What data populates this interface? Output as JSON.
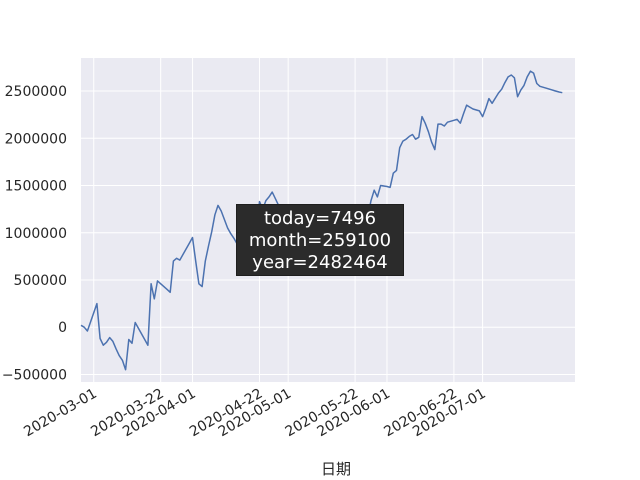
{
  "chart_data": {
    "type": "line",
    "title": "",
    "xlabel": "日期",
    "ylabel": "",
    "style": "seaborn-darkgrid",
    "background_color": "#eaeaf2",
    "line_color": "#4c72b0",
    "grid": true,
    "ylim": [
      -580000,
      2850000
    ],
    "xlim": [
      "2020-02-26",
      "2020-07-30"
    ],
    "x_ticks": [
      "2020-03-01",
      "2020-03-22",
      "2020-04-01",
      "2020-04-22",
      "2020-05-01",
      "2020-05-22",
      "2020-06-01",
      "2020-06-22",
      "2020-07-01"
    ],
    "y_ticks": [
      -500000,
      0,
      500000,
      1000000,
      1500000,
      2000000,
      2500000
    ],
    "y_tick_labels": [
      "−500000",
      "0",
      "500000",
      "1000000",
      "1500000",
      "2000000",
      "2500000"
    ],
    "series": [
      {
        "points": [
          [
            "2020-02-26",
            20000
          ],
          [
            "2020-02-27",
            0
          ],
          [
            "2020-02-28",
            -40000
          ],
          [
            "2020-03-02",
            250000
          ],
          [
            "2020-03-03",
            -120000
          ],
          [
            "2020-03-04",
            -190000
          ],
          [
            "2020-03-05",
            -160000
          ],
          [
            "2020-03-06",
            -110000
          ],
          [
            "2020-03-07",
            -150000
          ],
          [
            "2020-03-08",
            -230000
          ],
          [
            "2020-03-09",
            -300000
          ],
          [
            "2020-03-10",
            -350000
          ],
          [
            "2020-03-11",
            -450000
          ],
          [
            "2020-03-12",
            -130000
          ],
          [
            "2020-03-13",
            -170000
          ],
          [
            "2020-03-14",
            50000
          ],
          [
            "2020-03-18",
            -190000
          ],
          [
            "2020-03-19",
            460000
          ],
          [
            "2020-03-20",
            300000
          ],
          [
            "2020-03-21",
            490000
          ],
          [
            "2020-03-24",
            400000
          ],
          [
            "2020-03-25",
            370000
          ],
          [
            "2020-03-26",
            700000
          ],
          [
            "2020-03-27",
            730000
          ],
          [
            "2020-03-28",
            710000
          ],
          [
            "2020-03-31",
            890000
          ],
          [
            "2020-04-01",
            950000
          ],
          [
            "2020-04-02",
            700000
          ],
          [
            "2020-04-03",
            460000
          ],
          [
            "2020-04-04",
            430000
          ],
          [
            "2020-04-05",
            700000
          ],
          [
            "2020-04-06",
            860000
          ],
          [
            "2020-04-07",
            1010000
          ],
          [
            "2020-04-08",
            1190000
          ],
          [
            "2020-04-09",
            1290000
          ],
          [
            "2020-04-10",
            1230000
          ],
          [
            "2020-04-11",
            1140000
          ],
          [
            "2020-04-12",
            1050000
          ],
          [
            "2020-04-13",
            990000
          ],
          [
            "2020-04-14",
            940000
          ],
          [
            "2020-04-15",
            880000
          ],
          [
            "2020-04-16",
            920000
          ],
          [
            "2020-04-17",
            980000
          ],
          [
            "2020-04-18",
            1010000
          ],
          [
            "2020-04-19",
            1030000
          ],
          [
            "2020-04-20",
            1080000
          ],
          [
            "2020-04-21",
            1020000
          ],
          [
            "2020-04-22",
            1330000
          ],
          [
            "2020-04-23",
            1250000
          ],
          [
            "2020-04-24",
            1340000
          ],
          [
            "2020-04-25",
            1380000
          ],
          [
            "2020-04-26",
            1430000
          ],
          [
            "2020-04-27",
            1360000
          ],
          [
            "2020-04-28",
            1290000
          ],
          [
            "2020-04-29",
            1210000
          ],
          [
            "2020-04-30",
            1150000
          ],
          [
            "2020-05-26",
            1170000
          ],
          [
            "2020-05-27",
            1340000
          ],
          [
            "2020-05-28",
            1450000
          ],
          [
            "2020-05-29",
            1380000
          ],
          [
            "2020-05-30",
            1500000
          ],
          [
            "2020-06-01",
            1490000
          ],
          [
            "2020-06-02",
            1480000
          ],
          [
            "2020-06-03",
            1630000
          ],
          [
            "2020-06-04",
            1660000
          ],
          [
            "2020-06-05",
            1900000
          ],
          [
            "2020-06-06",
            1970000
          ],
          [
            "2020-06-07",
            1990000
          ],
          [
            "2020-06-08",
            2020000
          ],
          [
            "2020-06-09",
            2040000
          ],
          [
            "2020-06-10",
            1990000
          ],
          [
            "2020-06-11",
            2010000
          ],
          [
            "2020-06-12",
            2230000
          ],
          [
            "2020-06-13",
            2160000
          ],
          [
            "2020-06-14",
            2070000
          ],
          [
            "2020-06-15",
            1960000
          ],
          [
            "2020-06-16",
            1880000
          ],
          [
            "2020-06-17",
            2150000
          ],
          [
            "2020-06-18",
            2150000
          ],
          [
            "2020-06-19",
            2130000
          ],
          [
            "2020-06-20",
            2170000
          ],
          [
            "2020-06-22",
            2190000
          ],
          [
            "2020-06-23",
            2200000
          ],
          [
            "2020-06-24",
            2160000
          ],
          [
            "2020-06-25",
            2260000
          ],
          [
            "2020-06-26",
            2350000
          ],
          [
            "2020-06-27",
            2330000
          ],
          [
            "2020-06-28",
            2310000
          ],
          [
            "2020-06-30",
            2290000
          ],
          [
            "2020-07-01",
            2230000
          ],
          [
            "2020-07-02",
            2320000
          ],
          [
            "2020-07-03",
            2420000
          ],
          [
            "2020-07-04",
            2370000
          ],
          [
            "2020-07-06",
            2480000
          ],
          [
            "2020-07-07",
            2520000
          ],
          [
            "2020-07-08",
            2590000
          ],
          [
            "2020-07-09",
            2650000
          ],
          [
            "2020-07-10",
            2670000
          ],
          [
            "2020-07-11",
            2640000
          ],
          [
            "2020-07-12",
            2440000
          ],
          [
            "2020-07-13",
            2510000
          ],
          [
            "2020-07-14",
            2560000
          ],
          [
            "2020-07-15",
            2650000
          ],
          [
            "2020-07-16",
            2710000
          ],
          [
            "2020-07-17",
            2690000
          ],
          [
            "2020-07-18",
            2580000
          ],
          [
            "2020-07-19",
            2550000
          ],
          [
            "2020-07-21",
            2530000
          ],
          [
            "2020-07-24",
            2500000
          ],
          [
            "2020-07-25",
            2490000
          ],
          [
            "2020-07-26",
            2482464
          ]
        ]
      }
    ],
    "annotation": {
      "today_text": "today=7496",
      "month_text": "month=259100",
      "year_text": "year=2482464"
    }
  }
}
